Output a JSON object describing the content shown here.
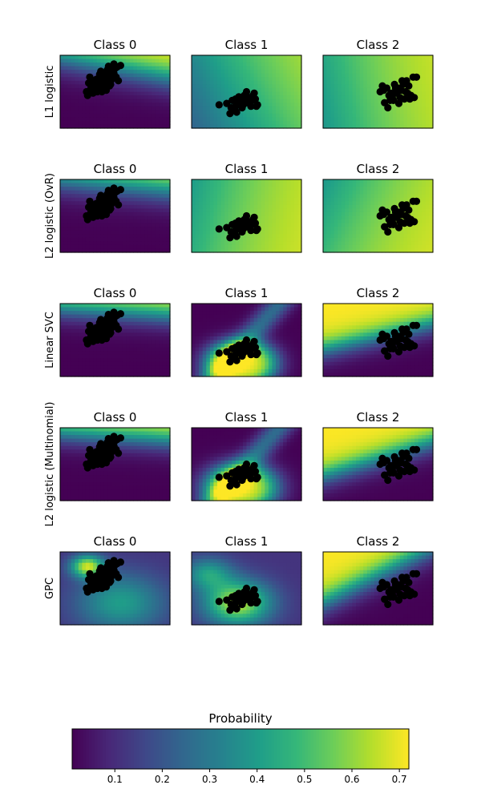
{
  "colors": {
    "viridis": [
      "#440154",
      "#482878",
      "#3e4989",
      "#31688e",
      "#26828e",
      "#1f9e89",
      "#35b779",
      "#6ece58",
      "#b5de2b",
      "#fde725"
    ],
    "points": "#000000",
    "background": "#ffffff"
  },
  "chart_data": {
    "type": "heatmap",
    "grid": false,
    "column_titles": [
      "Class 0",
      "Class 1",
      "Class 2"
    ],
    "row_labels": [
      "L1 logistic",
      "L2 logistic (OvR)",
      "Linear SVC",
      "L2 logistic (Multinomial)",
      "GPC"
    ],
    "colorbar": {
      "title": "Probability",
      "range": [
        0.01,
        0.72
      ],
      "ticks": [
        0.1,
        0.2,
        0.3,
        0.4,
        0.5,
        0.6,
        0.7
      ],
      "tick_labels": [
        "0.1",
        "0.2",
        "0.3",
        "0.4",
        "0.5",
        "0.6",
        "0.7"
      ],
      "orientation": "horizontal",
      "placement": "bottom"
    },
    "panels": [
      [
        {
          "model": "linear",
          "params": [
            0.7,
            -0.35,
            0.4,
            0.7,
            0.12
          ]
        },
        {
          "model": "linear",
          "params": [
            0.58,
            -0.25,
            -0.5,
            0.12,
            0.5
          ]
        },
        {
          "model": "linear",
          "params": [
            0.05,
            0.4,
            -0.3,
            0.45,
            0.5
          ]
        }
      ],
      [
        {
          "model": "linear",
          "params": [
            0.7,
            -0.55,
            0.5,
            0.72,
            0.12
          ]
        },
        {
          "model": "linear",
          "params": [
            0.1,
            0.7,
            -0.5,
            0.6,
            0.5
          ]
        },
        {
          "model": "linear",
          "params": [
            0.1,
            0.65,
            -0.55,
            0.45,
            0.5
          ]
        }
      ],
      [
        {
          "model": "linear",
          "params": [
            0.72,
            -0.45,
            0.6,
            0.7,
            0.1
          ]
        },
        {
          "model": "multi",
          "params": [
            0.45,
            0.82,
            0.45,
            0.8,
            0.06
          ]
        },
        {
          "model": "linear",
          "params": [
            0.02,
            0.5,
            0.1,
            0.72,
            0.09
          ]
        }
      ],
      [
        {
          "model": "linear",
          "params": [
            0.72,
            -0.45,
            0.6,
            0.72,
            0.1
          ]
        },
        {
          "model": "multi",
          "params": [
            0.45,
            0.82,
            0.45,
            0.78,
            0.07
          ]
        },
        {
          "model": "linear",
          "params": [
            0.02,
            0.55,
            0.1,
            0.72,
            0.09
          ]
        }
      ],
      [
        {
          "model": "gp",
          "params": [
            0.25,
            0.2,
            0.55,
            0.7,
            0.15,
            0.4
          ]
        },
        {
          "model": "gp",
          "params": [
            0.42,
            0.7,
            0.15,
            0.3,
            0.3,
            0.22
          ]
        },
        {
          "model": "linear",
          "params": [
            0.02,
            0.55,
            0.15,
            0.72,
            0.09
          ]
        }
      ]
    ],
    "scatter": [
      {
        "x": [
          0.24,
          0.28,
          0.32,
          0.35,
          0.38,
          0.41,
          0.44,
          0.47,
          0.26,
          0.3,
          0.34,
          0.37,
          0.4,
          0.43,
          0.46,
          0.33,
          0.36,
          0.39,
          0.42,
          0.45,
          0.48,
          0.5,
          0.52,
          0.55,
          0.3,
          0.35,
          0.4,
          0.45,
          0.38,
          0.33,
          0.29,
          0.42,
          0.46,
          0.51,
          0.25,
          0.49,
          0.43,
          0.37,
          0.31,
          0.27,
          0.49,
          0.44,
          0.33,
          0.39,
          0.3,
          0.53,
          0.36,
          0.47,
          0.41,
          0.35
        ],
        "y": [
          0.5,
          0.45,
          0.42,
          0.48,
          0.4,
          0.35,
          0.3,
          0.28,
          0.38,
          0.52,
          0.5,
          0.38,
          0.45,
          0.4,
          0.35,
          0.33,
          0.3,
          0.28,
          0.25,
          0.22,
          0.2,
          0.18,
          0.16,
          0.14,
          0.42,
          0.35,
          0.32,
          0.42,
          0.5,
          0.48,
          0.44,
          0.48,
          0.4,
          0.3,
          0.55,
          0.25,
          0.2,
          0.22,
          0.36,
          0.3,
          0.12,
          0.15,
          0.45,
          0.36,
          0.47,
          0.35,
          0.26,
          0.33,
          0.29,
          0.41
        ]
      },
      {
        "x": [
          0.25,
          0.32,
          0.36,
          0.4,
          0.42,
          0.45,
          0.48,
          0.5,
          0.52,
          0.55,
          0.58,
          0.6,
          0.54,
          0.5,
          0.46,
          0.44,
          0.41,
          0.38,
          0.57,
          0.53,
          0.49,
          0.35,
          0.43,
          0.47,
          0.56,
          0.51,
          0.4,
          0.59,
          0.37,
          0.45
        ],
        "y": [
          0.68,
          0.66,
          0.72,
          0.7,
          0.62,
          0.6,
          0.55,
          0.5,
          0.58,
          0.62,
          0.6,
          0.68,
          0.7,
          0.65,
          0.72,
          0.64,
          0.78,
          0.75,
          0.52,
          0.6,
          0.58,
          0.8,
          0.57,
          0.68,
          0.55,
          0.65,
          0.6,
          0.7,
          0.62,
          0.66
        ]
      },
      {
        "x": [
          0.52,
          0.55,
          0.58,
          0.6,
          0.62,
          0.65,
          0.68,
          0.7,
          0.72,
          0.75,
          0.78,
          0.8,
          0.82,
          0.85,
          0.64,
          0.67,
          0.71,
          0.74,
          0.77,
          0.56,
          0.59,
          0.63,
          0.69,
          0.73,
          0.79,
          0.66,
          0.61,
          0.76,
          0.54,
          0.83
        ],
        "y": [
          0.5,
          0.48,
          0.45,
          0.55,
          0.52,
          0.4,
          0.45,
          0.58,
          0.35,
          0.5,
          0.42,
          0.55,
          0.3,
          0.3,
          0.62,
          0.52,
          0.48,
          0.6,
          0.52,
          0.65,
          0.72,
          0.58,
          0.66,
          0.4,
          0.6,
          0.45,
          0.62,
          0.35,
          0.42,
          0.58
        ]
      }
    ]
  }
}
